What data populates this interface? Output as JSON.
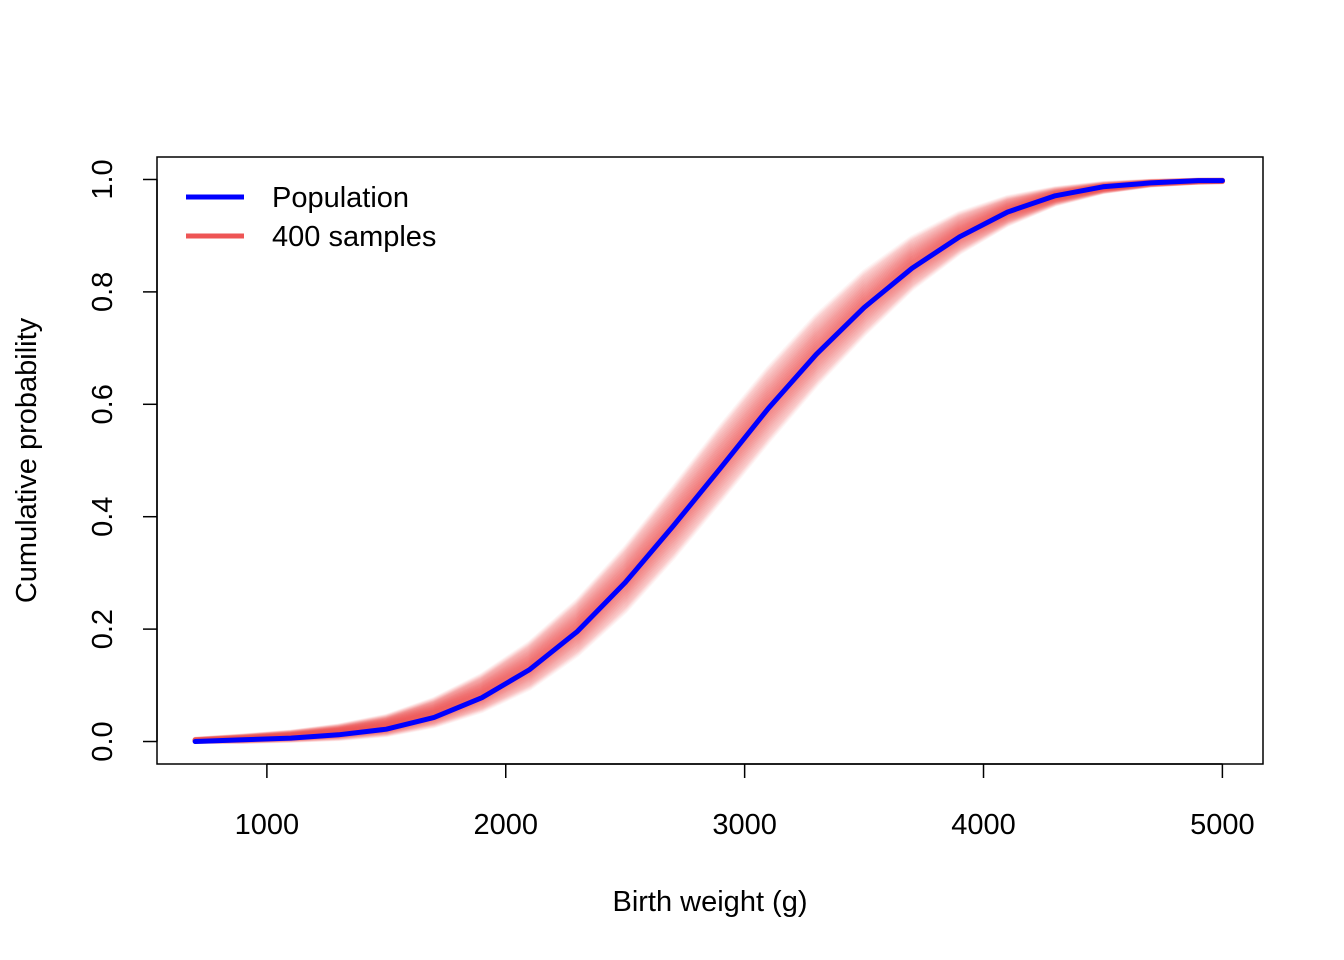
{
  "chart_data": {
    "type": "line",
    "title": "",
    "xlabel": "Birth weight (g)",
    "ylabel": "Cumulative probability",
    "xlim": [
      540,
      5170
    ],
    "ylim": [
      -0.04,
      1.04
    ],
    "x_ticks": [
      1000,
      2000,
      3000,
      4000,
      5000
    ],
    "x_tick_labels": [
      "1000",
      "2000",
      "3000",
      "4000",
      "5000"
    ],
    "y_ticks": [
      0.0,
      0.2,
      0.4,
      0.6,
      0.8,
      1.0
    ],
    "y_tick_labels": [
      "0.0",
      "0.2",
      "0.4",
      "0.6",
      "0.8",
      "1.0"
    ],
    "grid": false,
    "legend_position": "top-left",
    "series": [
      {
        "name": "Population",
        "color": "#0000FF",
        "x": [
          700,
          900,
          1100,
          1300,
          1500,
          1700,
          1900,
          2100,
          2300,
          2500,
          2700,
          2900,
          3100,
          3300,
          3500,
          3700,
          3900,
          4100,
          4300,
          4500,
          4700,
          4900,
          5000
        ],
        "y": [
          0.0,
          0.003,
          0.006,
          0.012,
          0.022,
          0.043,
          0.078,
          0.128,
          0.196,
          0.283,
          0.383,
          0.487,
          0.593,
          0.689,
          0.772,
          0.842,
          0.898,
          0.942,
          0.971,
          0.987,
          0.994,
          0.998,
          0.998
        ]
      },
      {
        "name": "400 samples",
        "color": "#EE5555",
        "band_x": [
          700,
          900,
          1100,
          1300,
          1500,
          1700,
          1900,
          2100,
          2300,
          2500,
          2700,
          2900,
          3100,
          3300,
          3500,
          3700,
          3900,
          4100,
          4300,
          4500,
          4700,
          4900,
          5000
        ],
        "band_lower": [
          0.0,
          0.0,
          0.002,
          0.005,
          0.012,
          0.028,
          0.055,
          0.095,
          0.155,
          0.232,
          0.327,
          0.43,
          0.535,
          0.635,
          0.725,
          0.806,
          0.87,
          0.92,
          0.956,
          0.978,
          0.99,
          0.995,
          0.996
        ],
        "band_upper": [
          0.004,
          0.01,
          0.017,
          0.028,
          0.045,
          0.075,
          0.118,
          0.175,
          0.25,
          0.344,
          0.45,
          0.56,
          0.664,
          0.757,
          0.835,
          0.896,
          0.94,
          0.968,
          0.984,
          0.993,
          0.997,
          0.999,
          0.999
        ]
      }
    ]
  }
}
